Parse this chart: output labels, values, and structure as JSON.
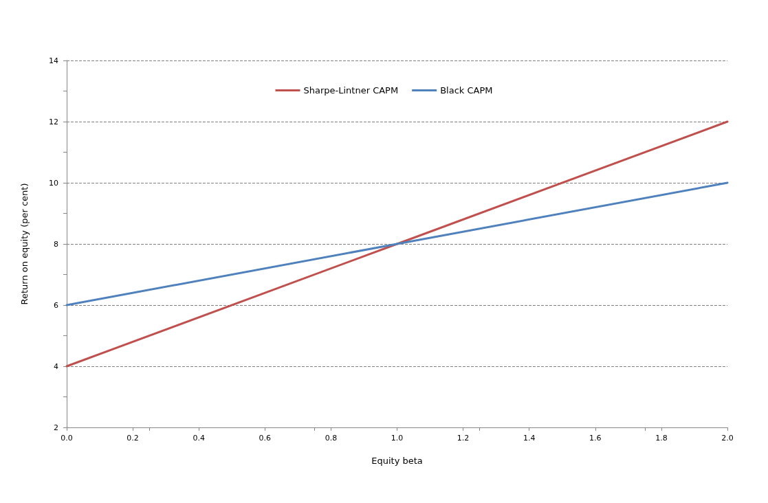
{
  "chart_data": {
    "type": "line",
    "xlabel": "Equity beta",
    "ylabel": "Return on equity (per cent)",
    "x": [
      0,
      1,
      2
    ],
    "series": [
      {
        "name": "Sharpe-Lintner CAPM",
        "color": "#c0504d",
        "values": [
          4,
          8,
          12
        ]
      },
      {
        "name": "Black CAPM",
        "color": "#4f81bd",
        "values": [
          6,
          8,
          10
        ]
      }
    ],
    "xlim": [
      0,
      2
    ],
    "xticks": [
      {
        "value": 0,
        "label": "0.0"
      },
      {
        "value": 0.2,
        "label": "0.2"
      },
      {
        "value": 0.4,
        "label": "0.4"
      },
      {
        "value": 0.6,
        "label": "0.6"
      },
      {
        "value": 0.8,
        "label": "0.8"
      },
      {
        "value": 1,
        "label": "1.0"
      },
      {
        "value": 1.2,
        "label": "1.2"
      },
      {
        "value": 1.4,
        "label": "1.4"
      },
      {
        "value": 1.6,
        "label": "1.6"
      },
      {
        "value": 1.8,
        "label": "1.8"
      },
      {
        "value": 2,
        "label": "2.0"
      }
    ],
    "ylim": [
      2,
      14
    ],
    "yticks": [
      2,
      4,
      6,
      8,
      10,
      12,
      14
    ],
    "grid": "y",
    "legend": "top",
    "marker": "none",
    "line_style": "solid"
  }
}
